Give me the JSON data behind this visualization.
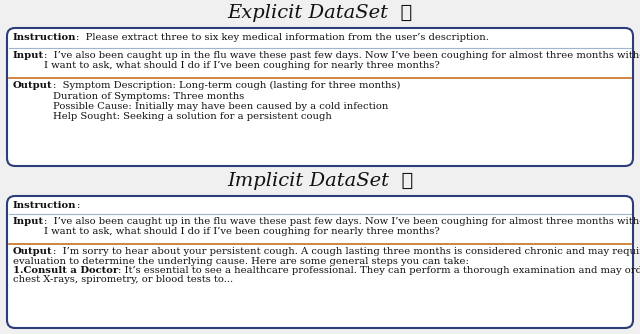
{
  "title_explicit": "Explicit DataSet",
  "title_implicit": "Implicit DataSet",
  "emoji_explicit": "🌞",
  "emoji_implicit": "🌙",
  "bg_color": "#f0f0f0",
  "box_bg_white": "#ffffff",
  "box_bg_output": "#ffffff",
  "box_border_blue": "#2c3e7a",
  "line_blue": "#a0b4cc",
  "line_orange": "#c87020",
  "text_color": "#111111",
  "explicit_instruction_bold": "Instruction",
  "explicit_instruction_rest": ":  Please extract three to six key medical information from the user’s description.",
  "explicit_input_bold": "Input",
  "explicit_input_rest": ":  I’ve also been caught up in the flu wave these past few days. Now I’ve been coughing for almost three months without getting better.\nI want to ask, what should I do if I’ve been coughing for nearly three months?",
  "explicit_output_bold": "Output",
  "explicit_output_rest": ":  Symptom Description: Long-term cough (lasting for three months)\nDuration of Symptoms: Three months\nPossible Cause: Initially may have been caused by a cold infection\nHelp Sought: Seeking a solution for a persistent cough",
  "implicit_instruction_bold": "Instruction",
  "implicit_instruction_rest": ":",
  "implicit_input_bold": "Input",
  "implicit_input_rest": ":  I’ve also been caught up in the flu wave these past few days. Now I’ve been coughing for almost three months without getting better.\nI want to ask, what should I do if I’ve been coughing for nearly three months?",
  "implicit_output_bold": "Output",
  "implicit_output_rest": ":  I’m sorry to hear about your persistent cough. A cough lasting three months is considered chronic and may require medical\nevaluation to determine the underlying cause. Here are some general steps you can take:\n1.Consult a Doctor: It’s essential to see a healthcare professional. They can perform a thorough examination and may order tests such as\nchest X-rays, spirometry, or blood tests to...",
  "implicit_output_bold2": "1.Consult a Doctor"
}
